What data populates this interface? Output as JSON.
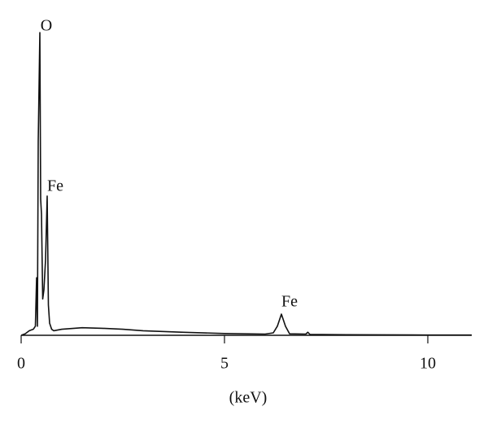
{
  "chart_data": {
    "type": "line",
    "x_label": "(keV)",
    "annotations": [
      "O",
      "Fe",
      "Fe"
    ],
    "x": [
      0,
      0.1,
      0.2,
      0.3,
      0.35,
      0.38,
      0.4,
      0.42,
      0.46,
      0.48,
      0.5,
      0.53,
      0.56,
      0.6,
      0.64,
      0.67,
      0.7,
      0.75,
      0.8,
      1.0,
      1.5,
      2.0,
      2.5,
      3.0,
      4.0,
      5.0,
      6.0,
      6.2,
      6.3,
      6.4,
      6.5,
      6.6,
      7.0,
      7.05,
      7.1,
      8.0,
      10.0,
      11.08
    ],
    "values": [
      0,
      0.5,
      1.5,
      2,
      3,
      19,
      3,
      64,
      100,
      45,
      40,
      12,
      15,
      25,
      46,
      10,
      4,
      2,
      1.5,
      2,
      2.5,
      2.3,
      2,
      1.5,
      1,
      0.6,
      0.4,
      0.8,
      3,
      7,
      3,
      0.5,
      0.4,
      1,
      0.3,
      0.2,
      0.1,
      0.1
    ],
    "color": "#111111",
    "xlim": [
      0,
      11.08
    ],
    "xticks": [
      0,
      5,
      10
    ],
    "ylim": [
      0,
      100
    ]
  }
}
